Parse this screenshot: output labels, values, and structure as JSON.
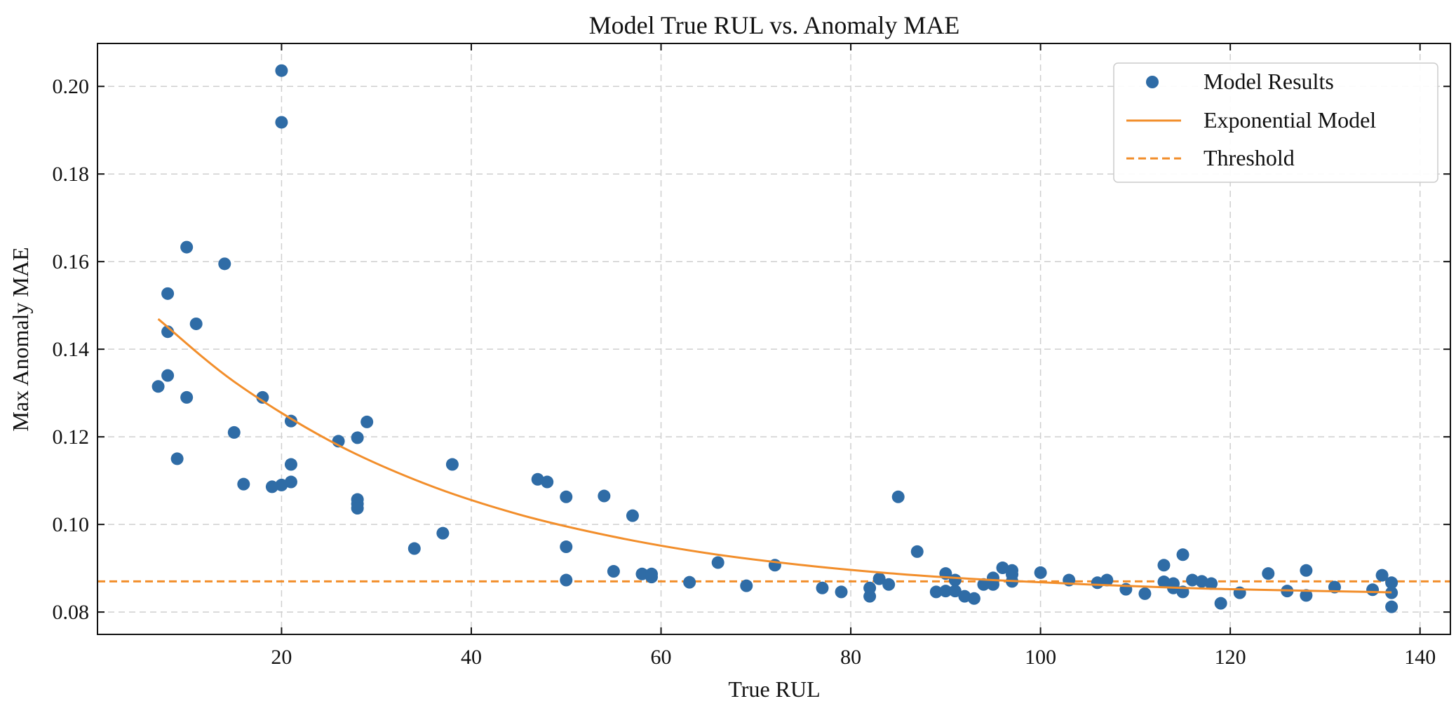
{
  "chart_data": {
    "type": "scatter",
    "title": "Model True RUL vs. Anomaly MAE",
    "xlabel": "True RUL",
    "ylabel": "Max Anomaly MAE",
    "xlim": [
      0.6,
      143.2
    ],
    "ylim": [
      0.0749,
      0.2098
    ],
    "xticks": [
      20,
      40,
      60,
      80,
      100,
      120,
      140
    ],
    "yticks": [
      0.08,
      0.1,
      0.12,
      0.14,
      0.16,
      0.18,
      0.2
    ],
    "ytick_labels": [
      "0.08",
      "0.10",
      "0.12",
      "0.14",
      "0.16",
      "0.18",
      "0.20"
    ],
    "grid": true,
    "legend_position": "top-right",
    "colors": {
      "points": "#2f6ca6",
      "model": "#f28e2b",
      "threshold": "#f28e2b"
    },
    "legend": [
      "Model Results",
      "Exponential Model",
      "Threshold"
    ],
    "series": [
      {
        "name": "Model Results",
        "type": "scatter",
        "points": [
          [
            7,
            0.1315
          ],
          [
            8,
            0.1527
          ],
          [
            8,
            0.144
          ],
          [
            8,
            0.134
          ],
          [
            9,
            0.115
          ],
          [
            10,
            0.1633
          ],
          [
            10,
            0.129
          ],
          [
            11,
            0.1458
          ],
          [
            14,
            0.1595
          ],
          [
            15,
            0.121
          ],
          [
            16,
            0.1092
          ],
          [
            18,
            0.129
          ],
          [
            19,
            0.1086
          ],
          [
            20,
            0.109
          ],
          [
            20,
            0.2036
          ],
          [
            20,
            0.1918
          ],
          [
            21,
            0.1236
          ],
          [
            21,
            0.1137
          ],
          [
            21,
            0.1097
          ],
          [
            26,
            0.119
          ],
          [
            28,
            0.1198
          ],
          [
            28,
            0.1057
          ],
          [
            28,
            0.1047
          ],
          [
            28,
            0.1037
          ],
          [
            29,
            0.1234
          ],
          [
            34,
            0.0945
          ],
          [
            37,
            0.098
          ],
          [
            38,
            0.1137
          ],
          [
            47,
            0.1103
          ],
          [
            48,
            0.1097
          ],
          [
            50,
            0.1063
          ],
          [
            50,
            0.0949
          ],
          [
            50,
            0.0873
          ],
          [
            54,
            0.1065
          ],
          [
            55,
            0.0893
          ],
          [
            57,
            0.102
          ],
          [
            58,
            0.0887
          ],
          [
            59,
            0.0887
          ],
          [
            59,
            0.088
          ],
          [
            63,
            0.0868
          ],
          [
            66,
            0.0913
          ],
          [
            69,
            0.086
          ],
          [
            72,
            0.0907
          ],
          [
            77,
            0.0855
          ],
          [
            79,
            0.0846
          ],
          [
            82,
            0.0855
          ],
          [
            82,
            0.0836
          ],
          [
            83,
            0.0876
          ],
          [
            84,
            0.0863
          ],
          [
            85,
            0.1063
          ],
          [
            87,
            0.0938
          ],
          [
            89,
            0.0846
          ],
          [
            90,
            0.0888
          ],
          [
            90,
            0.0848
          ],
          [
            91,
            0.0873
          ],
          [
            91,
            0.0848
          ],
          [
            92,
            0.0836
          ],
          [
            93,
            0.0831
          ],
          [
            94,
            0.0863
          ],
          [
            95,
            0.0878
          ],
          [
            95,
            0.0863
          ],
          [
            96,
            0.0901
          ],
          [
            97,
            0.0895
          ],
          [
            97,
            0.0886
          ],
          [
            97,
            0.087
          ],
          [
            100,
            0.089
          ],
          [
            103,
            0.0873
          ],
          [
            106,
            0.0867
          ],
          [
            107,
            0.0873
          ],
          [
            109,
            0.0852
          ],
          [
            111,
            0.0842
          ],
          [
            113,
            0.0907
          ],
          [
            113,
            0.0869
          ],
          [
            114,
            0.0855
          ],
          [
            114,
            0.0865
          ],
          [
            115,
            0.0931
          ],
          [
            115,
            0.0846
          ],
          [
            116,
            0.0873
          ],
          [
            117,
            0.087
          ],
          [
            118,
            0.0865
          ],
          [
            119,
            0.082
          ],
          [
            121,
            0.0844
          ],
          [
            124,
            0.0888
          ],
          [
            126,
            0.0848
          ],
          [
            128,
            0.0895
          ],
          [
            128,
            0.0838
          ],
          [
            131,
            0.0857
          ],
          [
            135,
            0.0851
          ],
          [
            136,
            0.0884
          ],
          [
            137,
            0.0867
          ],
          [
            137,
            0.0844
          ],
          [
            137,
            0.0812
          ]
        ]
      },
      {
        "name": "Exponential Model",
        "type": "line",
        "x": [
          7,
          15,
          25,
          35,
          45,
          55,
          65,
          75,
          85,
          95,
          105,
          115,
          125,
          137
        ],
        "y": [
          0.1469,
          0.1326,
          0.1192,
          0.1094,
          0.1023,
          0.0972,
          0.0934,
          0.0907,
          0.0887,
          0.0873,
          0.0863,
          0.0855,
          0.085,
          0.0845
        ]
      },
      {
        "name": "Threshold",
        "type": "hline",
        "y": 0.087
      }
    ]
  }
}
